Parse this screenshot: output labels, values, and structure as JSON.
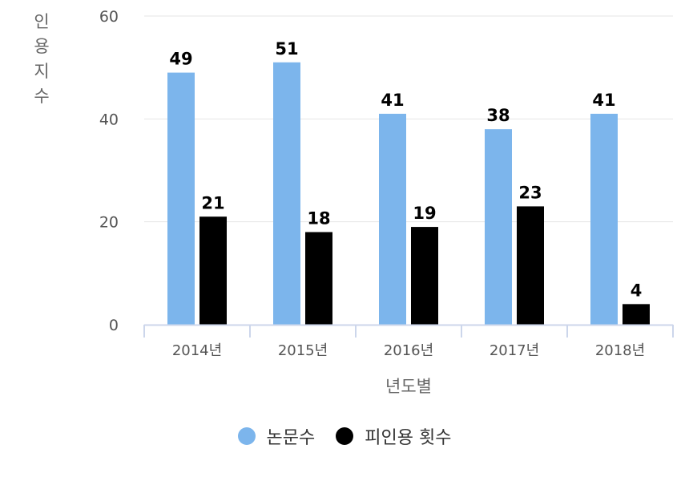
{
  "chart_data": {
    "type": "bar",
    "title": "",
    "xlabel": "년도별",
    "ylabel": "인용지수",
    "ylim": [
      0,
      60
    ],
    "yticks": [
      0,
      20,
      40,
      60
    ],
    "categories": [
      "2014년",
      "2015년",
      "2016년",
      "2017년",
      "2018년"
    ],
    "series": [
      {
        "name": "논문수",
        "color": "#7cb5ec",
        "values": [
          49,
          51,
          41,
          38,
          41
        ]
      },
      {
        "name": "피인용 횟수",
        "color": "#000000",
        "values": [
          21,
          18,
          19,
          23,
          4
        ]
      }
    ],
    "grid": true,
    "legend": "bottom"
  }
}
